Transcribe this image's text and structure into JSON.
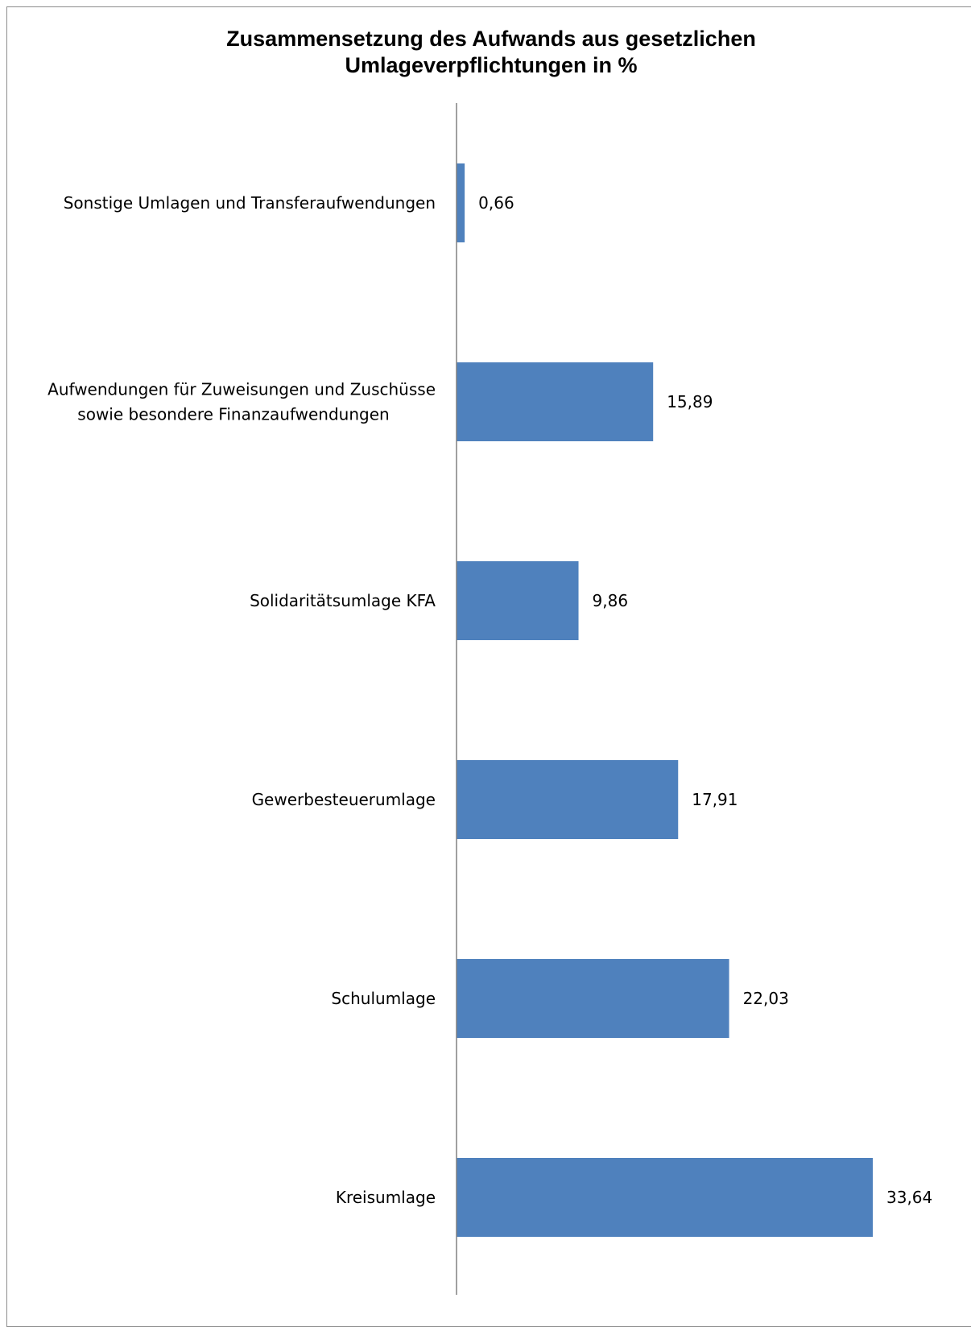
{
  "chart_data": {
    "type": "bar",
    "orientation": "horizontal",
    "title": "Zusammensetzung des Aufwands aus gesetzlichen Umlageverpflichtungen in %",
    "title_lines": [
      "Zusammensetzung des Aufwands aus gesetzlichen",
      "Umlageverpflichtungen in %"
    ],
    "categories": [
      [
        "Sonstige Umlagen und Transferaufwendungen"
      ],
      [
        "Aufwendungen für Zuweisungen und Zuschüsse",
        "sowie besondere Finanzaufwendungen"
      ],
      [
        "Solidaritätsumlage KFA"
      ],
      [
        "Gewerbesteuerumlage"
      ],
      [
        "Schulumlage"
      ],
      [
        "Kreisumlage"
      ]
    ],
    "values": [
      0.66,
      15.89,
      9.86,
      17.91,
      22.03,
      33.64
    ],
    "value_labels": [
      "0,66",
      "15,89",
      "9,86",
      "17,91",
      "22,03",
      "33,64"
    ],
    "xlim": [
      0,
      33.64
    ],
    "bar_color": "#4F81BD",
    "axis_color": "#808080",
    "grid": false,
    "legend": "none"
  }
}
